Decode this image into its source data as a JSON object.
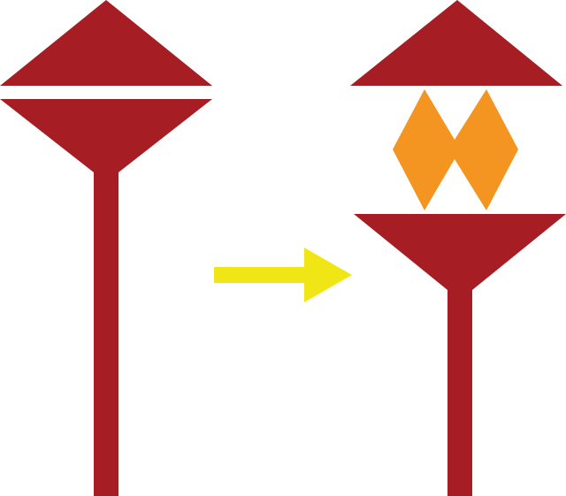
{
  "diagram": {
    "colors": {
      "stem": "#A61E24",
      "flame": "#F39520",
      "arrow": "#F0E615",
      "background": "#FFFFFF"
    },
    "left_figure": {
      "state": "closed",
      "parts": [
        "top-triangle",
        "bottom-funnel",
        "stem"
      ]
    },
    "right_figure": {
      "state": "open",
      "parts": [
        "top-triangle",
        "flame",
        "bottom-funnel",
        "stem"
      ]
    },
    "arrow": {
      "direction": "right"
    }
  }
}
